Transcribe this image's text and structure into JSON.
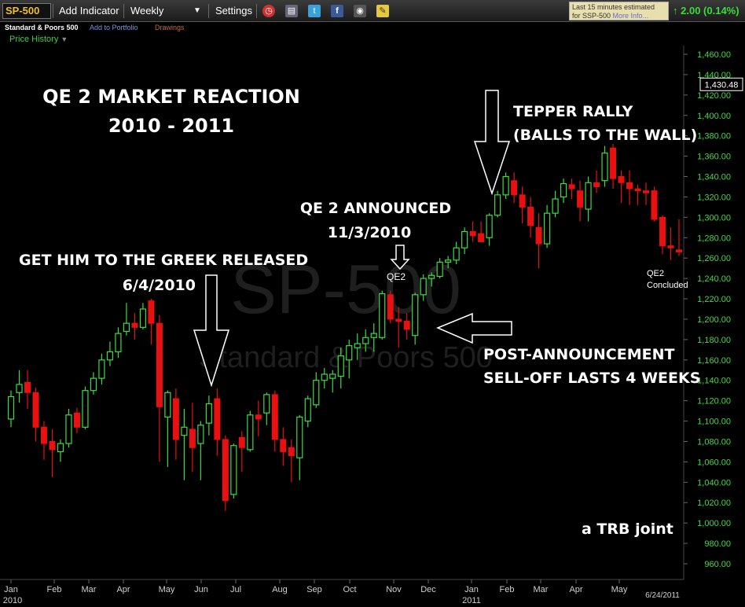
{
  "toolbar": {
    "symbol": "SP-500",
    "add_indicator": "Add Indicator",
    "period": "Weekly",
    "settings": "Settings",
    "notice_line1": "Last 15 minutes estimated",
    "notice_line2": "for SSP-500",
    "notice_more": "More Info...",
    "change": "2.00 (0.14%)",
    "icons": [
      "alarm-clock-icon",
      "layers-icon",
      "twitter-icon",
      "facebook-icon",
      "camera-icon",
      "note-icon"
    ]
  },
  "subheader": {
    "name": "Standard & Poors 500",
    "add_to_portfolio": "Add to Portfolio",
    "drawings": "Drawings",
    "price_history": "Price History"
  },
  "chart_data": {
    "type": "candlestick",
    "watermark_symbol": "SP-500",
    "watermark_name": "Standard & Poors 500",
    "y_axis": {
      "min": 950,
      "max": 1470,
      "ticks": [
        960,
        980,
        1000,
        1020,
        1040,
        1060,
        1080,
        1100,
        1120,
        1140,
        1160,
        1180,
        1200,
        1220,
        1240,
        1260,
        1280,
        1300,
        1320,
        1340,
        1360,
        1380,
        1400,
        1420,
        1440,
        1460
      ],
      "tick_labels": [
        "960.00",
        "980.00",
        "1,000.00",
        "1,020.00",
        "1,040.00",
        "1,060.00",
        "1,080.00",
        "1,100.00",
        "1,120.00",
        "1,140.00",
        "1,160.00",
        "1,180.00",
        "1,200.00",
        "1,220.00",
        "1,240.00",
        "1,260.00",
        "1,280.00",
        "1,300.00",
        "1,320.00",
        "1,340.00",
        "1,360.00",
        "1,380.00",
        "1,400.00",
        "1,420.00",
        "1,440.00",
        "1,460.00"
      ],
      "current_price_label": "1,430.48",
      "current_price": 1430.48
    },
    "x_axis": {
      "month_labels": [
        "Jan",
        "Feb",
        "Mar",
        "Apr",
        "May",
        "Jun",
        "Jul",
        "Aug",
        "Sep",
        "Oct",
        "Nov",
        "Dec",
        "Jan",
        "Feb",
        "Mar",
        "Apr",
        "May"
      ],
      "year_labels": [
        "2010",
        "2011"
      ],
      "end_label": "6/24/2011"
    },
    "colors": {
      "up": "#3ddc3d",
      "down": "#e81010",
      "background": "#000000",
      "grid": "#1e1e1e",
      "axis_text": "#3ddc3d"
    },
    "candles": [
      {
        "o": 1102,
        "h": 1130,
        "l": 1094,
        "c": 1124
      },
      {
        "o": 1128,
        "h": 1150,
        "l": 1118,
        "c": 1136
      },
      {
        "o": 1138,
        "h": 1150,
        "l": 1112,
        "c": 1128
      },
      {
        "o": 1128,
        "h": 1133,
        "l": 1080,
        "c": 1094
      },
      {
        "o": 1094,
        "h": 1100,
        "l": 1062,
        "c": 1078
      },
      {
        "o": 1080,
        "h": 1092,
        "l": 1045,
        "c": 1072
      },
      {
        "o": 1070,
        "h": 1082,
        "l": 1060,
        "c": 1078
      },
      {
        "o": 1078,
        "h": 1112,
        "l": 1074,
        "c": 1106
      },
      {
        "o": 1108,
        "h": 1113,
        "l": 1088,
        "c": 1094
      },
      {
        "o": 1094,
        "h": 1134,
        "l": 1092,
        "c": 1130
      },
      {
        "o": 1130,
        "h": 1148,
        "l": 1126,
        "c": 1142
      },
      {
        "o": 1142,
        "h": 1166,
        "l": 1136,
        "c": 1160
      },
      {
        "o": 1160,
        "h": 1178,
        "l": 1154,
        "c": 1168
      },
      {
        "o": 1168,
        "h": 1192,
        "l": 1162,
        "c": 1186
      },
      {
        "o": 1188,
        "h": 1216,
        "l": 1184,
        "c": 1196
      },
      {
        "o": 1196,
        "h": 1206,
        "l": 1180,
        "c": 1192
      },
      {
        "o": 1192,
        "h": 1216,
        "l": 1190,
        "c": 1210
      },
      {
        "o": 1218,
        "h": 1220,
        "l": 1175,
        "c": 1196
      },
      {
        "o": 1196,
        "h": 1204,
        "l": 1060,
        "c": 1114
      },
      {
        "o": 1104,
        "h": 1130,
        "l": 1055,
        "c": 1128
      },
      {
        "o": 1122,
        "h": 1132,
        "l": 1062,
        "c": 1082
      },
      {
        "o": 1086,
        "h": 1112,
        "l": 1042,
        "c": 1094
      },
      {
        "o": 1092,
        "h": 1118,
        "l": 1050,
        "c": 1074
      },
      {
        "o": 1078,
        "h": 1100,
        "l": 1042,
        "c": 1096
      },
      {
        "o": 1098,
        "h": 1125,
        "l": 1086,
        "c": 1117
      },
      {
        "o": 1122,
        "h": 1132,
        "l": 1066,
        "c": 1082
      },
      {
        "o": 1082,
        "h": 1086,
        "l": 1012,
        "c": 1022
      },
      {
        "o": 1028,
        "h": 1078,
        "l": 1024,
        "c": 1076
      },
      {
        "o": 1084,
        "h": 1090,
        "l": 1050,
        "c": 1074
      },
      {
        "o": 1072,
        "h": 1110,
        "l": 1070,
        "c": 1106
      },
      {
        "o": 1106,
        "h": 1120,
        "l": 1085,
        "c": 1102
      },
      {
        "o": 1108,
        "h": 1128,
        "l": 1096,
        "c": 1126
      },
      {
        "o": 1126,
        "h": 1130,
        "l": 1070,
        "c": 1082
      },
      {
        "o": 1082,
        "h": 1094,
        "l": 1056,
        "c": 1070
      },
      {
        "o": 1074,
        "h": 1082,
        "l": 1040,
        "c": 1066
      },
      {
        "o": 1064,
        "h": 1106,
        "l": 1042,
        "c": 1104
      },
      {
        "o": 1100,
        "h": 1125,
        "l": 1094,
        "c": 1122
      },
      {
        "o": 1116,
        "h": 1148,
        "l": 1113,
        "c": 1140
      },
      {
        "o": 1140,
        "h": 1152,
        "l": 1132,
        "c": 1146
      },
      {
        "o": 1142,
        "h": 1150,
        "l": 1128,
        "c": 1146
      },
      {
        "o": 1144,
        "h": 1172,
        "l": 1132,
        "c": 1164
      },
      {
        "o": 1160,
        "h": 1180,
        "l": 1142,
        "c": 1174
      },
      {
        "o": 1172,
        "h": 1186,
        "l": 1160,
        "c": 1176
      },
      {
        "o": 1176,
        "h": 1190,
        "l": 1168,
        "c": 1182
      },
      {
        "o": 1182,
        "h": 1196,
        "l": 1168,
        "c": 1186
      },
      {
        "o": 1182,
        "h": 1228,
        "l": 1180,
        "c": 1225
      },
      {
        "o": 1224,
        "h": 1228,
        "l": 1196,
        "c": 1200
      },
      {
        "o": 1200,
        "h": 1212,
        "l": 1172,
        "c": 1198
      },
      {
        "o": 1198,
        "h": 1206,
        "l": 1180,
        "c": 1190
      },
      {
        "o": 1184,
        "h": 1226,
        "l": 1175,
        "c": 1224
      },
      {
        "o": 1224,
        "h": 1244,
        "l": 1218,
        "c": 1240
      },
      {
        "o": 1240,
        "h": 1246,
        "l": 1232,
        "c": 1243
      },
      {
        "o": 1242,
        "h": 1260,
        "l": 1240,
        "c": 1256
      },
      {
        "o": 1256,
        "h": 1262,
        "l": 1250,
        "c": 1258
      },
      {
        "o": 1258,
        "h": 1276,
        "l": 1254,
        "c": 1270
      },
      {
        "o": 1270,
        "h": 1290,
        "l": 1264,
        "c": 1286
      },
      {
        "o": 1286,
        "h": 1296,
        "l": 1276,
        "c": 1282
      },
      {
        "o": 1284,
        "h": 1296,
        "l": 1276,
        "c": 1276
      },
      {
        "o": 1280,
        "h": 1304,
        "l": 1272,
        "c": 1302
      },
      {
        "o": 1302,
        "h": 1326,
        "l": 1300,
        "c": 1322
      },
      {
        "o": 1322,
        "h": 1344,
        "l": 1318,
        "c": 1340
      },
      {
        "o": 1336,
        "h": 1344,
        "l": 1314,
        "c": 1322
      },
      {
        "o": 1322,
        "h": 1330,
        "l": 1294,
        "c": 1310
      },
      {
        "o": 1310,
        "h": 1320,
        "l": 1280,
        "c": 1292
      },
      {
        "o": 1290,
        "h": 1304,
        "l": 1250,
        "c": 1274
      },
      {
        "o": 1274,
        "h": 1312,
        "l": 1270,
        "c": 1304
      },
      {
        "o": 1304,
        "h": 1326,
        "l": 1300,
        "c": 1318
      },
      {
        "o": 1320,
        "h": 1338,
        "l": 1314,
        "c": 1333
      },
      {
        "o": 1332,
        "h": 1338,
        "l": 1318,
        "c": 1328
      },
      {
        "o": 1326,
        "h": 1336,
        "l": 1296,
        "c": 1310
      },
      {
        "o": 1308,
        "h": 1340,
        "l": 1296,
        "c": 1334
      },
      {
        "o": 1334,
        "h": 1346,
        "l": 1324,
        "c": 1330
      },
      {
        "o": 1336,
        "h": 1370,
        "l": 1330,
        "c": 1363
      },
      {
        "o": 1368,
        "h": 1372,
        "l": 1328,
        "c": 1338
      },
      {
        "o": 1340,
        "h": 1346,
        "l": 1314,
        "c": 1334
      },
      {
        "o": 1334,
        "h": 1346,
        "l": 1312,
        "c": 1328
      },
      {
        "o": 1328,
        "h": 1332,
        "l": 1312,
        "c": 1326
      },
      {
        "o": 1326,
        "h": 1334,
        "l": 1312,
        "c": 1324
      },
      {
        "o": 1326,
        "h": 1330,
        "l": 1296,
        "c": 1298
      },
      {
        "o": 1300,
        "h": 1302,
        "l": 1264,
        "c": 1272
      },
      {
        "o": 1272,
        "h": 1290,
        "l": 1258,
        "c": 1270
      },
      {
        "o": 1268,
        "h": 1298,
        "l": 1262,
        "c": 1266
      }
    ]
  },
  "annotations": {
    "title_line1": "QE 2 MARKET REACTION",
    "title_line2": "2010 - 2011",
    "greek_line1": "GET HIM TO THE GREEK RELEASED",
    "greek_line2": "6/4/2010",
    "qe2_line1": "QE 2 ANNOUNCED",
    "qe2_line2": "11/3/2010",
    "qe2_marker": "QE2",
    "tepper_line1": "TEPPER RALLY",
    "tepper_line2": "(BALLS TO THE WALL)",
    "post_line1": "POST-ANNOUNCEMENT",
    "post_line2": "SELL-OFF LASTS 4 WEEKS",
    "qe2_end_line1": "QE2",
    "qe2_end_line2": "Concluded",
    "signature": "a TRB joint"
  }
}
